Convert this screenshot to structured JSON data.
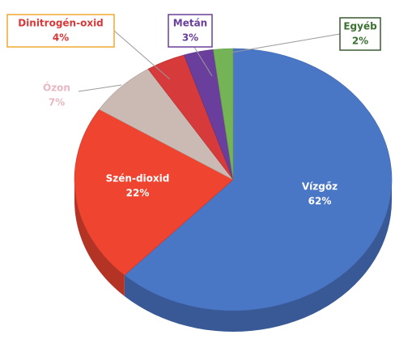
{
  "chart_data": {
    "type": "pie",
    "categories": [
      "Vízgőz",
      "Szén-dioxid",
      "Ózon",
      "Dinitrogén-oxid",
      "Metán",
      "Egyéb"
    ],
    "values": [
      62,
      22,
      7,
      4,
      3,
      2
    ],
    "value_labels": [
      "62%",
      "22%",
      "7%",
      "4%",
      "3%",
      "2%"
    ],
    "colors": [
      "#4a76c6",
      "#ee4430",
      "#cbbab4",
      "#d63a3a",
      "#6a3e9c",
      "#74b356"
    ]
  }
}
